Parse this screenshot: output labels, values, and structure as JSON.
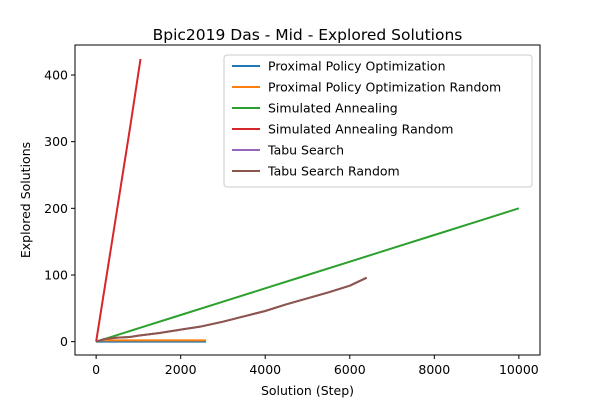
{
  "chart_data": {
    "type": "line",
    "title": "Bpic2019 Das - Mid - Explored Solutions",
    "xlabel": "Solution (Step)",
    "ylabel": "Explored Solutions",
    "xlim": [
      -500,
      10500
    ],
    "ylim": [
      -20,
      445
    ],
    "xticks": [
      0,
      2000,
      4000,
      6000,
      8000,
      10000
    ],
    "yticks": [
      0,
      100,
      200,
      300,
      400
    ],
    "grid": false,
    "legend_position": "upper-right",
    "series": [
      {
        "name": "Proximal Policy Optimization",
        "color": "#1f77b4",
        "x": [
          0,
          2600
        ],
        "y": [
          0,
          0
        ]
      },
      {
        "name": "Proximal Policy Optimization Random",
        "color": "#ff7f0e",
        "x": [
          0,
          100,
          2600
        ],
        "y": [
          0,
          2,
          2
        ]
      },
      {
        "name": "Simulated Annealing",
        "color": "#2ca02c",
        "x": [
          0,
          1000,
          2000,
          3000,
          4000,
          5000,
          6000,
          7000,
          8000,
          9000,
          10000
        ],
        "y": [
          0,
          20,
          40,
          60,
          80,
          100,
          120,
          140,
          160,
          180,
          200
        ]
      },
      {
        "name": "Simulated Annealing Random",
        "color": "#d62728",
        "x": [
          0,
          200,
          400,
          600,
          800,
          1050
        ],
        "y": [
          0,
          80,
          160,
          240,
          320,
          424
        ]
      },
      {
        "name": "Tabu Search",
        "color": "#9467bd",
        "x": [
          0,
          200,
          500,
          800,
          1000,
          1500,
          2000,
          2500,
          3000,
          3500,
          4000,
          4500,
          5000,
          5500,
          6000,
          6400
        ],
        "y": [
          0,
          4,
          6,
          7,
          9,
          13,
          18,
          23,
          30,
          38,
          46,
          56,
          65,
          74,
          84,
          96
        ]
      },
      {
        "name": "Tabu Search Random",
        "color": "#8c564b",
        "x": [
          0,
          200,
          500,
          800,
          1000,
          1500,
          2000,
          2500,
          3000,
          3500,
          4000,
          4500,
          5000,
          5500,
          6000,
          6400
        ],
        "y": [
          0,
          4,
          6,
          7,
          9,
          13,
          18,
          23,
          30,
          38,
          46,
          56,
          65,
          74,
          84,
          96
        ]
      }
    ]
  }
}
